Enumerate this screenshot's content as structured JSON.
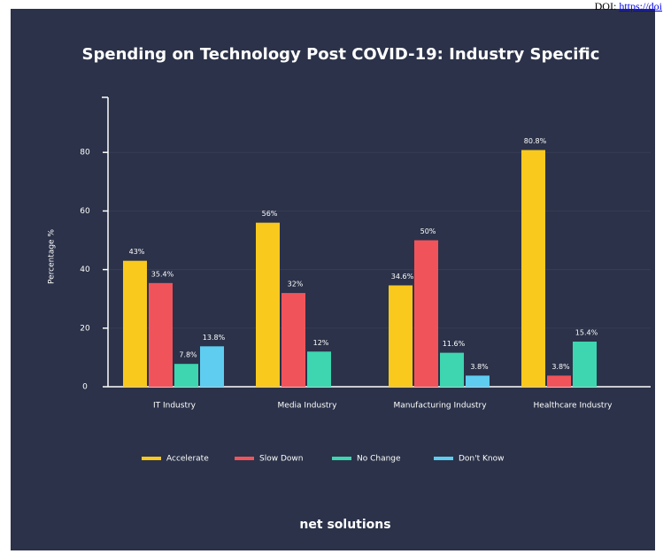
{
  "header": {
    "prefix": "DOI:",
    "link": "https://doi"
  },
  "chart_data": {
    "type": "bar",
    "title": "Spending on Technology Post COVID-19: Industry Specific",
    "y_label": "Percentage %",
    "categories": [
      "IT Industry",
      "Media Industry",
      "Manufacturing Industry",
      "Healthcare Industry"
    ],
    "series": [
      {
        "name": "Accelerate",
        "color": "#f9c91d",
        "values": [
          43,
          56,
          34.6,
          80.8
        ],
        "value_labels": [
          "43%",
          "56%",
          "34.6%",
          "80.8%"
        ]
      },
      {
        "name": "Slow Down",
        "color": "#f0545a",
        "values": [
          35.4,
          32,
          50,
          3.8
        ],
        "value_labels": [
          "35.4%",
          "32%",
          "50%",
          "3.8%"
        ]
      },
      {
        "name": "No Change",
        "color": "#3dd6b0",
        "values": [
          7.8,
          12,
          11.6,
          15.4
        ],
        "value_labels": [
          "7.8%",
          "12%",
          "11.6%",
          "15.4%"
        ]
      },
      {
        "name": "Don't Know",
        "color": "#5ecdf0",
        "values": [
          13.8,
          null,
          3.8,
          null
        ],
        "value_labels": [
          "13.8%",
          null,
          "3.8%",
          null
        ]
      }
    ],
    "ylim": [
      0,
      100
    ],
    "yticks": [
      0,
      20,
      40,
      60,
      80
    ],
    "grid": true,
    "legend": "bottom",
    "footer": "net solutions"
  }
}
